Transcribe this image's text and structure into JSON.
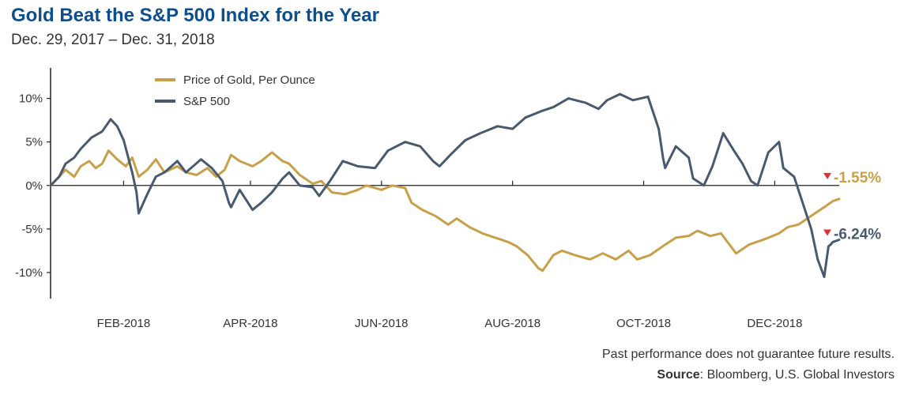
{
  "title": "Gold Beat the S&P 500 Index for the Year",
  "subtitle": "Dec. 29, 2017 – Dec. 31, 2018",
  "footer": {
    "disclaimer": "Past performance does not guarantee future results.",
    "source_label": "Source",
    "source_text": ": Bloomberg, U.S. Global Investors"
  },
  "colors": {
    "gold": "#c8a04a",
    "sp500": "#4a5a6e",
    "down_marker": "#e03030",
    "axis": "#222222"
  },
  "chart_data": {
    "type": "line",
    "title": "Gold Beat the S&P 500 Index for the Year",
    "subtitle": "Dec. 29, 2017 – Dec. 31, 2018",
    "xlabel": "",
    "ylabel": "",
    "ylim": [
      -13,
      13.5
    ],
    "yticks": [
      10,
      5,
      0,
      -5,
      -10
    ],
    "ytick_labels": [
      "10%",
      "5%",
      "0%",
      "-5%",
      "-10%"
    ],
    "xlim": [
      "2017-12-29",
      "2018-12-31"
    ],
    "xticks": [
      "2018-02-01",
      "2018-04-01",
      "2018-06-01",
      "2018-08-01",
      "2018-10-01",
      "2018-12-01"
    ],
    "xtick_labels": [
      "FEB-2018",
      "APR-2018",
      "JUN-2018",
      "AUG-2018",
      "OCT-2018",
      "DEC-2018"
    ],
    "grid": false,
    "legend_position": "top-left",
    "series": [
      {
        "name": "Price of Gold, Per Ounce",
        "color": "#c8a04a",
        "end_label": "-1.55%",
        "points": [
          [
            "2017-12-29",
            0
          ],
          [
            "2018-01-02",
            1.0
          ],
          [
            "2018-01-05",
            1.8
          ],
          [
            "2018-01-09",
            1.0
          ],
          [
            "2018-01-12",
            2.2
          ],
          [
            "2018-01-16",
            2.8
          ],
          [
            "2018-01-19",
            2.0
          ],
          [
            "2018-01-22",
            2.5
          ],
          [
            "2018-01-25",
            4.0
          ],
          [
            "2018-01-29",
            3.0
          ],
          [
            "2018-02-02",
            2.2
          ],
          [
            "2018-02-05",
            3.2
          ],
          [
            "2018-02-08",
            1.0
          ],
          [
            "2018-02-12",
            1.8
          ],
          [
            "2018-02-16",
            3.0
          ],
          [
            "2018-02-20",
            1.5
          ],
          [
            "2018-02-26",
            2.2
          ],
          [
            "2018-03-02",
            1.5
          ],
          [
            "2018-03-07",
            1.2
          ],
          [
            "2018-03-12",
            2.0
          ],
          [
            "2018-03-16",
            1.0
          ],
          [
            "2018-03-20",
            1.8
          ],
          [
            "2018-03-23",
            3.5
          ],
          [
            "2018-03-27",
            2.8
          ],
          [
            "2018-04-02",
            2.2
          ],
          [
            "2018-04-06",
            2.8
          ],
          [
            "2018-04-11",
            3.8
          ],
          [
            "2018-04-16",
            2.8
          ],
          [
            "2018-04-19",
            2.5
          ],
          [
            "2018-04-24",
            1.2
          ],
          [
            "2018-04-30",
            0.2
          ],
          [
            "2018-05-04",
            0.5
          ],
          [
            "2018-05-09",
            -0.8
          ],
          [
            "2018-05-15",
            -1.0
          ],
          [
            "2018-05-21",
            -0.5
          ],
          [
            "2018-05-25",
            0
          ],
          [
            "2018-06-01",
            -0.5
          ],
          [
            "2018-06-06",
            0
          ],
          [
            "2018-06-12",
            -0.3
          ],
          [
            "2018-06-15",
            -2.0
          ],
          [
            "2018-06-20",
            -2.8
          ],
          [
            "2018-06-26",
            -3.5
          ],
          [
            "2018-07-02",
            -4.5
          ],
          [
            "2018-07-06",
            -3.8
          ],
          [
            "2018-07-12",
            -4.8
          ],
          [
            "2018-07-18",
            -5.5
          ],
          [
            "2018-07-24",
            -6.0
          ],
          [
            "2018-07-30",
            -6.5
          ],
          [
            "2018-08-03",
            -7.0
          ],
          [
            "2018-08-08",
            -8.0
          ],
          [
            "2018-08-13",
            -9.5
          ],
          [
            "2018-08-15",
            -9.8
          ],
          [
            "2018-08-20",
            -8.0
          ],
          [
            "2018-08-24",
            -7.5
          ],
          [
            "2018-08-30",
            -8.0
          ],
          [
            "2018-09-06",
            -8.5
          ],
          [
            "2018-09-12",
            -7.8
          ],
          [
            "2018-09-18",
            -8.5
          ],
          [
            "2018-09-24",
            -7.5
          ],
          [
            "2018-09-28",
            -8.5
          ],
          [
            "2018-10-04",
            -8.0
          ],
          [
            "2018-10-11",
            -6.8
          ],
          [
            "2018-10-16",
            -6.0
          ],
          [
            "2018-10-22",
            -5.8
          ],
          [
            "2018-10-26",
            -5.2
          ],
          [
            "2018-11-01",
            -5.8
          ],
          [
            "2018-11-06",
            -5.5
          ],
          [
            "2018-11-13",
            -7.8
          ],
          [
            "2018-11-19",
            -6.8
          ],
          [
            "2018-11-26",
            -6.2
          ],
          [
            "2018-12-03",
            -5.5
          ],
          [
            "2018-12-07",
            -4.8
          ],
          [
            "2018-12-12",
            -4.5
          ],
          [
            "2018-12-18",
            -3.5
          ],
          [
            "2018-12-24",
            -2.5
          ],
          [
            "2018-12-28",
            -1.8
          ],
          [
            "2018-12-31",
            -1.55
          ]
        ]
      },
      {
        "name": "S&P 500",
        "color": "#4a5a6e",
        "end_label": "-6.24%",
        "points": [
          [
            "2017-12-29",
            0
          ],
          [
            "2018-01-02",
            1.0
          ],
          [
            "2018-01-05",
            2.5
          ],
          [
            "2018-01-09",
            3.2
          ],
          [
            "2018-01-12",
            4.2
          ],
          [
            "2018-01-17",
            5.5
          ],
          [
            "2018-01-22",
            6.2
          ],
          [
            "2018-01-26",
            7.6
          ],
          [
            "2018-01-29",
            6.8
          ],
          [
            "2018-02-01",
            5.2
          ],
          [
            "2018-02-05",
            1.5
          ],
          [
            "2018-02-07",
            -0.8
          ],
          [
            "2018-02-08",
            -3.2
          ],
          [
            "2018-02-12",
            -1.0
          ],
          [
            "2018-02-16",
            1.0
          ],
          [
            "2018-02-20",
            1.5
          ],
          [
            "2018-02-26",
            2.8
          ],
          [
            "2018-03-02",
            1.5
          ],
          [
            "2018-03-09",
            3.0
          ],
          [
            "2018-03-14",
            2.0
          ],
          [
            "2018-03-19",
            0.5
          ],
          [
            "2018-03-22",
            -2.0
          ],
          [
            "2018-03-23",
            -2.5
          ],
          [
            "2018-03-27",
            -0.5
          ],
          [
            "2018-04-02",
            -2.8
          ],
          [
            "2018-04-06",
            -2.0
          ],
          [
            "2018-04-11",
            -0.8
          ],
          [
            "2018-04-16",
            0.8
          ],
          [
            "2018-04-19",
            1.5
          ],
          [
            "2018-04-24",
            0
          ],
          [
            "2018-04-30",
            -0.2
          ],
          [
            "2018-05-03",
            -1.2
          ],
          [
            "2018-05-08",
            0.5
          ],
          [
            "2018-05-14",
            2.8
          ],
          [
            "2018-05-21",
            2.2
          ],
          [
            "2018-05-29",
            2.0
          ],
          [
            "2018-06-04",
            4.0
          ],
          [
            "2018-06-12",
            5.0
          ],
          [
            "2018-06-19",
            4.5
          ],
          [
            "2018-06-25",
            2.8
          ],
          [
            "2018-06-28",
            2.2
          ],
          [
            "2018-07-03",
            3.5
          ],
          [
            "2018-07-10",
            5.2
          ],
          [
            "2018-07-17",
            6.0
          ],
          [
            "2018-07-25",
            6.8
          ],
          [
            "2018-08-01",
            6.5
          ],
          [
            "2018-08-07",
            7.8
          ],
          [
            "2018-08-14",
            8.5
          ],
          [
            "2018-08-20",
            9.0
          ],
          [
            "2018-08-27",
            10.0
          ],
          [
            "2018-09-04",
            9.5
          ],
          [
            "2018-09-10",
            8.8
          ],
          [
            "2018-09-14",
            9.8
          ],
          [
            "2018-09-20",
            10.5
          ],
          [
            "2018-09-26",
            9.8
          ],
          [
            "2018-10-03",
            10.2
          ],
          [
            "2018-10-08",
            6.5
          ],
          [
            "2018-10-10",
            3.2
          ],
          [
            "2018-10-11",
            2.0
          ],
          [
            "2018-10-16",
            4.5
          ],
          [
            "2018-10-22",
            3.2
          ],
          [
            "2018-10-24",
            0.8
          ],
          [
            "2018-10-29",
            0
          ],
          [
            "2018-11-02",
            2.2
          ],
          [
            "2018-11-07",
            6.0
          ],
          [
            "2018-11-12",
            4.0
          ],
          [
            "2018-11-16",
            2.5
          ],
          [
            "2018-11-20",
            0.5
          ],
          [
            "2018-11-23",
            0
          ],
          [
            "2018-11-28",
            3.8
          ],
          [
            "2018-12-03",
            5.0
          ],
          [
            "2018-12-05",
            2.0
          ],
          [
            "2018-12-10",
            1.0
          ],
          [
            "2018-12-14",
            -2.0
          ],
          [
            "2018-12-18",
            -5.0
          ],
          [
            "2018-12-21",
            -8.5
          ],
          [
            "2018-12-24",
            -10.5
          ],
          [
            "2018-12-26",
            -7.0
          ],
          [
            "2018-12-27",
            -6.8
          ],
          [
            "2018-12-28",
            -6.5
          ],
          [
            "2018-12-31",
            -6.24
          ]
        ]
      }
    ]
  }
}
